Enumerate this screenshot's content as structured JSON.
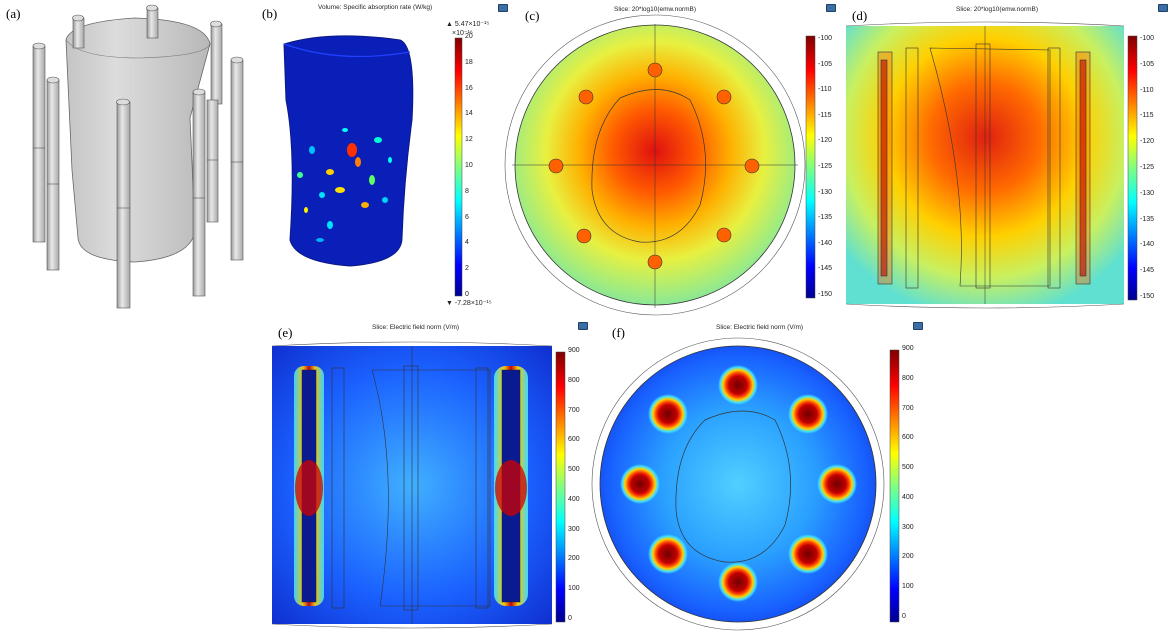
{
  "panels": {
    "a": {
      "label": "(a)"
    },
    "b": {
      "label": "(b)",
      "title": "Volume: Specific absorption rate (W/kg)",
      "max_text": "▲ 5.47×10⁻¹⁵",
      "exp_text": "×10⁻¹⁶",
      "min_text": "▼ -7.28×10⁻¹⁵",
      "ticks": [
        "20",
        "18",
        "16",
        "14",
        "12",
        "10",
        "8",
        "6",
        "4",
        "2",
        "0"
      ]
    },
    "c": {
      "label": "(c)",
      "title": "Slice: 20*log10(emw.normB)",
      "ticks": [
        "-100",
        "-105",
        "-110",
        "-115",
        "-120",
        "-125",
        "-130",
        "-135",
        "-140",
        "-145",
        "-150"
      ]
    },
    "d": {
      "label": "(d)",
      "title": "Slice: 20*log10(emw.normB)",
      "ticks": [
        "-100",
        "-105",
        "-110",
        "-115",
        "-120",
        "-125",
        "-130",
        "-135",
        "-140",
        "-145",
        "-150"
      ]
    },
    "e": {
      "label": "(e)",
      "title": "Slice: Electric field norm (V/m)",
      "ticks": [
        "900",
        "800",
        "700",
        "600",
        "500",
        "400",
        "300",
        "200",
        "100",
        "0"
      ]
    },
    "f": {
      "label": "(f)",
      "title": "Slice: Electric field norm (V/m)",
      "ticks": [
        "900",
        "800",
        "700",
        "600",
        "500",
        "400",
        "300",
        "200",
        "100",
        "0"
      ]
    }
  },
  "colors": {
    "jet": [
      "#00008f",
      "#0000ff",
      "#0080ff",
      "#00ffff",
      "#80ff80",
      "#ffff00",
      "#ff8000",
      "#ff0000",
      "#800000"
    ]
  }
}
